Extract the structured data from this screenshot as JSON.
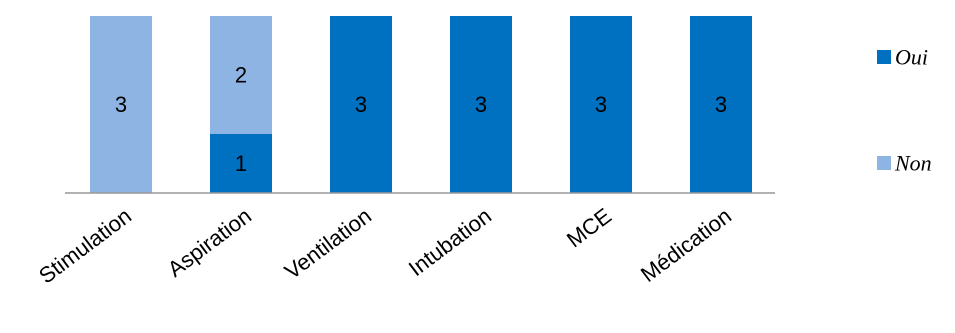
{
  "chart_data": {
    "type": "bar",
    "stacked": true,
    "categories": [
      "Stimulation",
      "Aspiration",
      "Ventilation",
      "Intubation",
      "MCE",
      "Médication"
    ],
    "series": [
      {
        "name": "Oui",
        "values": [
          0,
          1,
          3,
          3,
          3,
          3
        ],
        "color": "#0070c0"
      },
      {
        "name": "Non",
        "values": [
          3,
          2,
          0,
          0,
          0,
          0
        ],
        "color": "#8eb4e3"
      }
    ],
    "ylim": [
      0,
      3
    ],
    "grid": false,
    "legend": "right",
    "title": "",
    "xlabel": "",
    "ylabel": ""
  }
}
